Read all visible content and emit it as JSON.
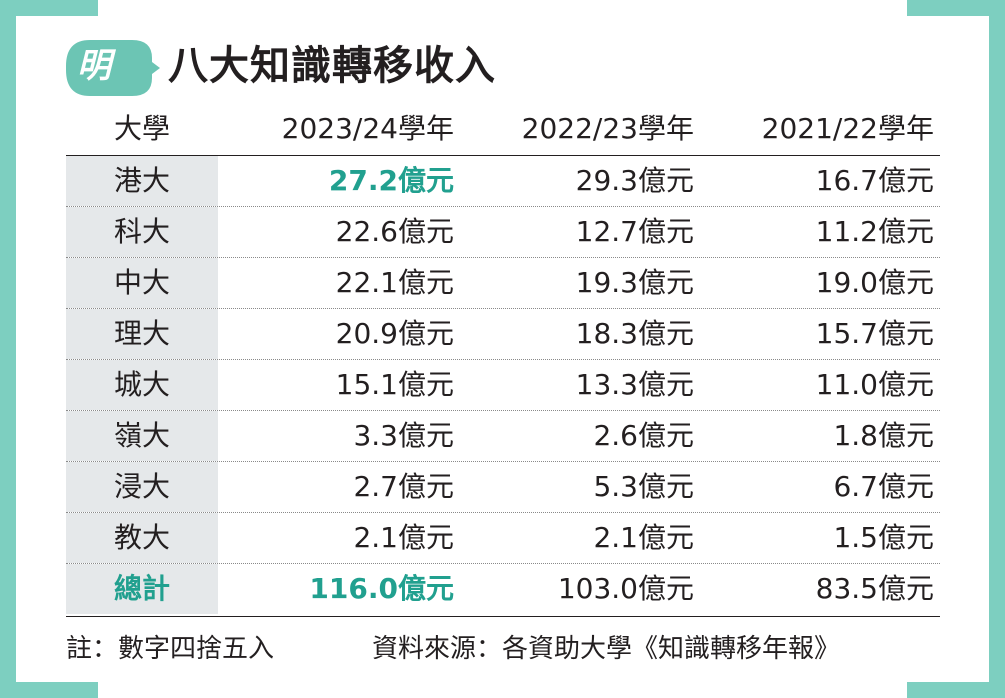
{
  "title": "八大知識轉移收入",
  "logo": {
    "text": "明",
    "color": "#6cc5b4"
  },
  "accent_color": "#21a08f",
  "table": {
    "headers": [
      "大學",
      "2023/24學年",
      "2022/23學年",
      "2021/22學年"
    ],
    "rows": [
      {
        "name": "港大",
        "v2324": "27.2億元",
        "v2223": "29.3億元",
        "v2122": "16.7億元"
      },
      {
        "name": "科大",
        "v2324": "22.6億元",
        "v2223": "12.7億元",
        "v2122": "11.2億元"
      },
      {
        "name": "中大",
        "v2324": "22.1億元",
        "v2223": "19.3億元",
        "v2122": "19.0億元"
      },
      {
        "name": "理大",
        "v2324": "20.9億元",
        "v2223": "18.3億元",
        "v2122": "15.7億元"
      },
      {
        "name": "城大",
        "v2324": "15.1億元",
        "v2223": "13.3億元",
        "v2122": "11.0億元"
      },
      {
        "name": "嶺大",
        "v2324": "3.3億元",
        "v2223": "2.6億元",
        "v2122": "1.8億元"
      },
      {
        "name": "浸大",
        "v2324": "2.7億元",
        "v2223": "5.3億元",
        "v2122": "6.7億元"
      },
      {
        "name": "教大",
        "v2324": "2.1億元",
        "v2223": "2.1億元",
        "v2122": "1.5億元"
      },
      {
        "name": "總計",
        "v2324": "116.0億元",
        "v2223": "103.0億元",
        "v2122": "83.5億元"
      }
    ]
  },
  "footer": {
    "note": "註：數字四捨五入",
    "source": "資料來源：各資助大學《知識轉移年報》"
  }
}
